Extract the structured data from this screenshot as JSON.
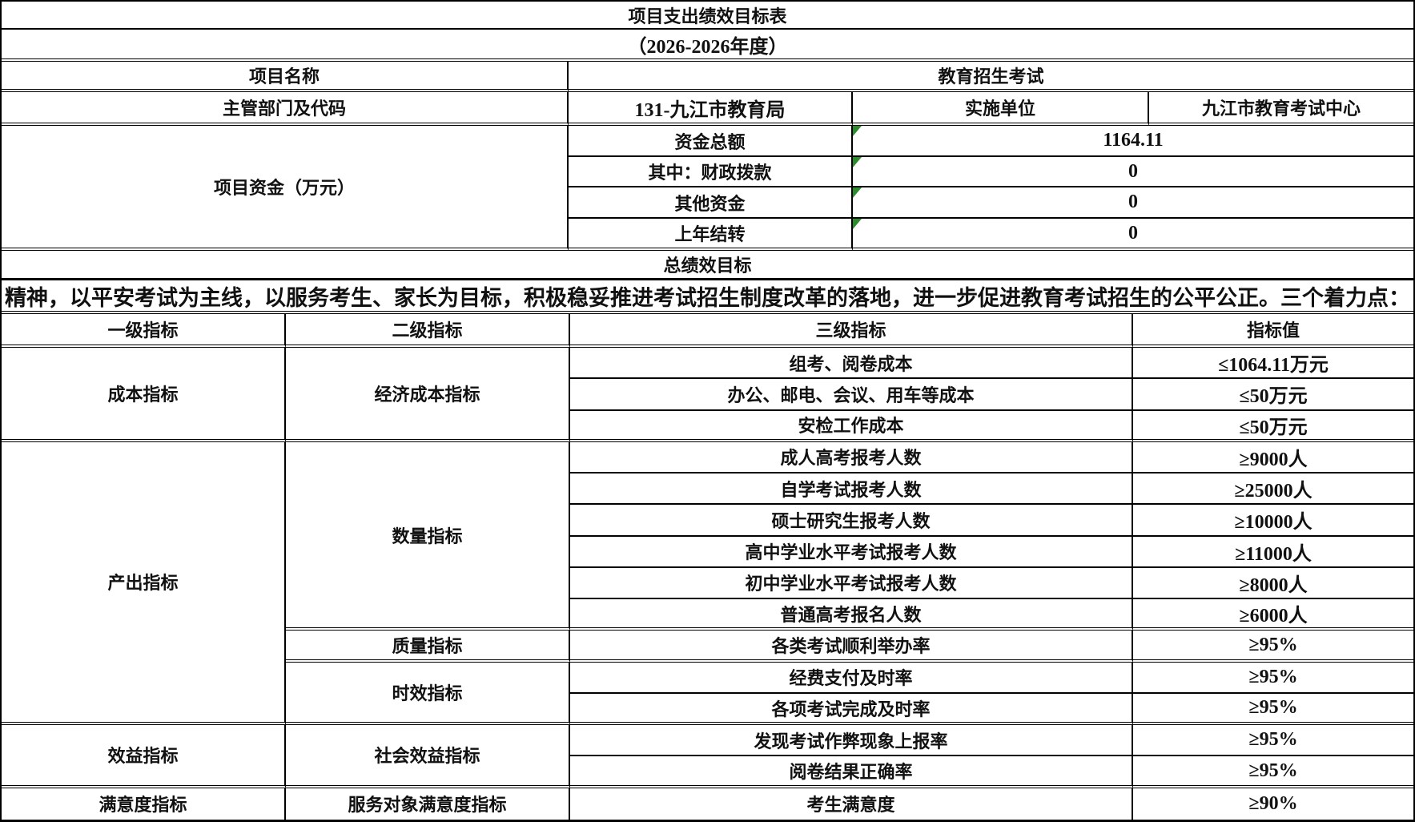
{
  "title": "项目支出绩效目标表",
  "subtitle": "（2026-2026年度）",
  "project_info": {
    "name_label": "项目名称",
    "name_value": "教育招生考试",
    "dept_label": "主管部门及代码",
    "dept_value": "131-九江市教育局",
    "impl_label": "实施单位",
    "impl_value": "九江市教育考试中心"
  },
  "funding": {
    "label": "项目资金（万元）",
    "rows": [
      {
        "label": "资金总额",
        "value": "1164.11"
      },
      {
        "label": "其中：财政拨款",
        "value": "0"
      },
      {
        "label": "其他资金",
        "value": "0"
      },
      {
        "label": "上年结转",
        "value": "0"
      }
    ]
  },
  "overall_goal": {
    "header": "总绩效目标",
    "visible_text": "精神，以平安考试为主线，以服务考生、家长为目标，积极稳妥推进考试招生制度改革的落地，进一步促进教育考试招生的公平公正。三个着力点："
  },
  "indicator_table": {
    "headers": {
      "l1": "一级指标",
      "l2": "二级指标",
      "l3": "三级指标",
      "value": "指标值"
    },
    "level1_groups": [
      {
        "label": "成本指标",
        "row_span": 3
      },
      {
        "label": "产出指标",
        "row_span": 9
      },
      {
        "label": "效益指标",
        "row_span": 2
      },
      {
        "label": "满意度指标",
        "row_span": 1
      }
    ],
    "level2_groups": [
      {
        "label": "经济成本指标",
        "row_span": 3
      },
      {
        "label": "数量指标",
        "row_span": 6
      },
      {
        "label": "质量指标",
        "row_span": 1
      },
      {
        "label": "时效指标",
        "row_span": 2
      },
      {
        "label": "社会效益指标",
        "row_span": 2
      },
      {
        "label": "服务对象满意度指标",
        "row_span": 1
      }
    ],
    "rows": [
      {
        "indicator": "组考、阅卷成本",
        "value": "≤1064.11万元"
      },
      {
        "indicator": "办公、邮电、会议、用车等成本",
        "value": "≤50万元"
      },
      {
        "indicator": "安检工作成本",
        "value": "≤50万元"
      },
      {
        "indicator": "成人高考报考人数",
        "value": "≥9000人"
      },
      {
        "indicator": "自学考试报考人数",
        "value": "≥25000人"
      },
      {
        "indicator": "硕士研究生报考人数",
        "value": "≥10000人"
      },
      {
        "indicator": "高中学业水平考试报考人数",
        "value": "≥11000人"
      },
      {
        "indicator": "初中学业水平考试报考人数",
        "value": "≥8000人"
      },
      {
        "indicator": "普通高考报名人数",
        "value": "≥6000人"
      },
      {
        "indicator": "各类考试顺利举办率",
        "value": "≥95%"
      },
      {
        "indicator": "经费支付及时率",
        "value": "≥95%"
      },
      {
        "indicator": "各项考试完成及时率",
        "value": "≥95%"
      },
      {
        "indicator": "发现考试作弊现象上报率",
        "value": "≥95%"
      },
      {
        "indicator": "阅卷结果正确率",
        "value": "≥95%"
      },
      {
        "indicator": "考生满意度",
        "value": "≥90%"
      }
    ]
  },
  "colors": {
    "cell_marker_green": "#2e8b2e",
    "border": "#000000",
    "text": "#111111",
    "background": "#ffffff"
  }
}
